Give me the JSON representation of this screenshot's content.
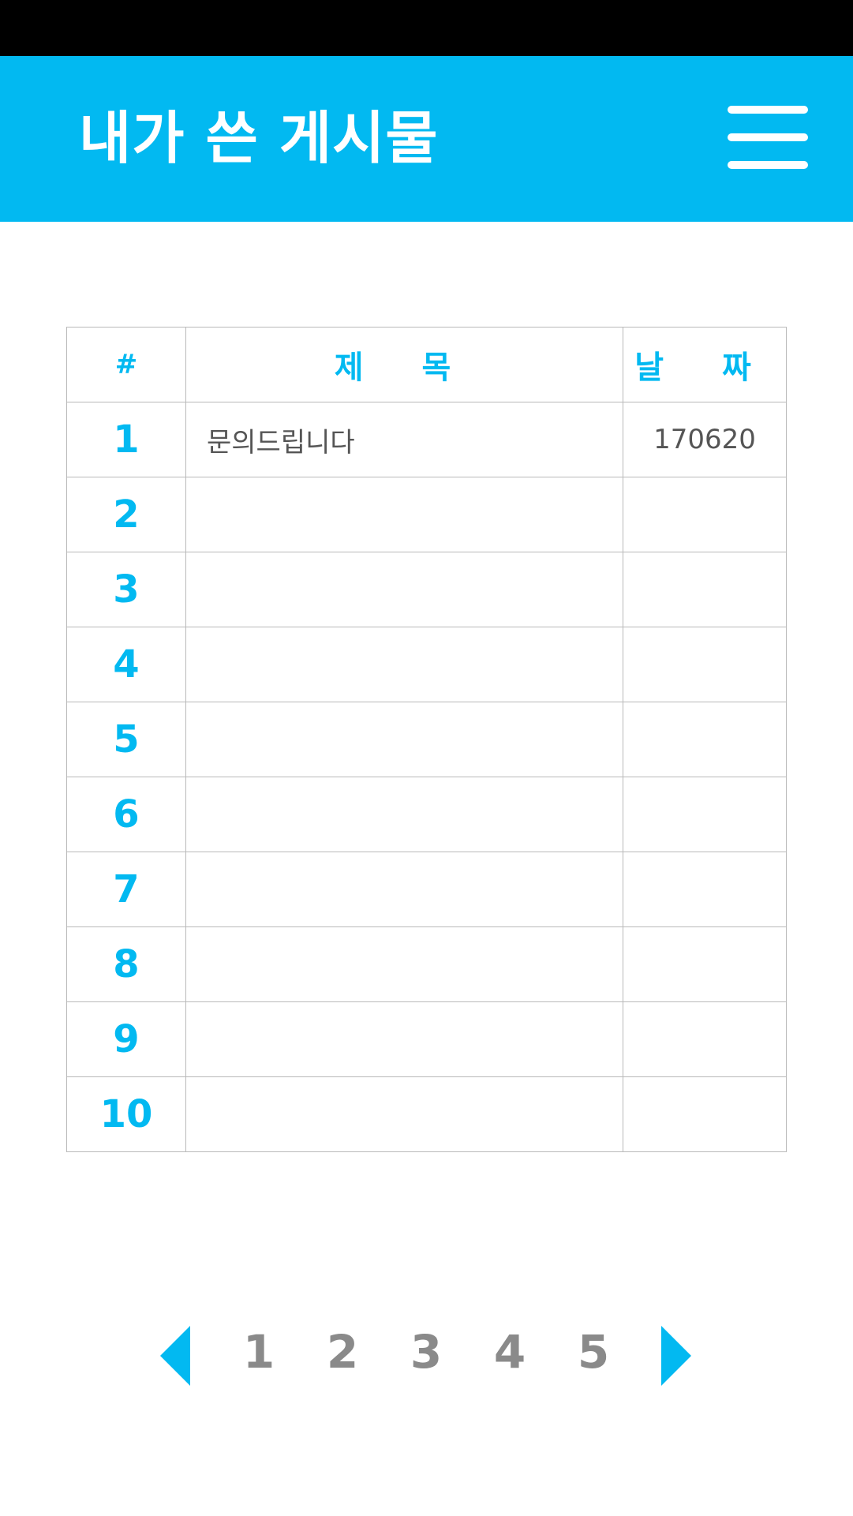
{
  "header": {
    "title": "내가 쓴 게시물",
    "menu_icon": "hamburger-menu-icon",
    "background_color": "#02b9f1"
  },
  "table": {
    "columns": {
      "number": "#",
      "title": "제 목",
      "date": "날 짜"
    },
    "rows": [
      {
        "number": "1",
        "title": "문의드립니다",
        "date": "170620"
      },
      {
        "number": "2",
        "title": "",
        "date": ""
      },
      {
        "number": "3",
        "title": "",
        "date": ""
      },
      {
        "number": "4",
        "title": "",
        "date": ""
      },
      {
        "number": "5",
        "title": "",
        "date": ""
      },
      {
        "number": "6",
        "title": "",
        "date": ""
      },
      {
        "number": "7",
        "title": "",
        "date": ""
      },
      {
        "number": "8",
        "title": "",
        "date": ""
      },
      {
        "number": "9",
        "title": "",
        "date": ""
      },
      {
        "number": "10",
        "title": "",
        "date": ""
      }
    ]
  },
  "pagination": {
    "prev_icon": "triangle-left-icon",
    "next_icon": "triangle-right-icon",
    "pages": [
      "1",
      "2",
      "3",
      "4",
      "5"
    ]
  }
}
